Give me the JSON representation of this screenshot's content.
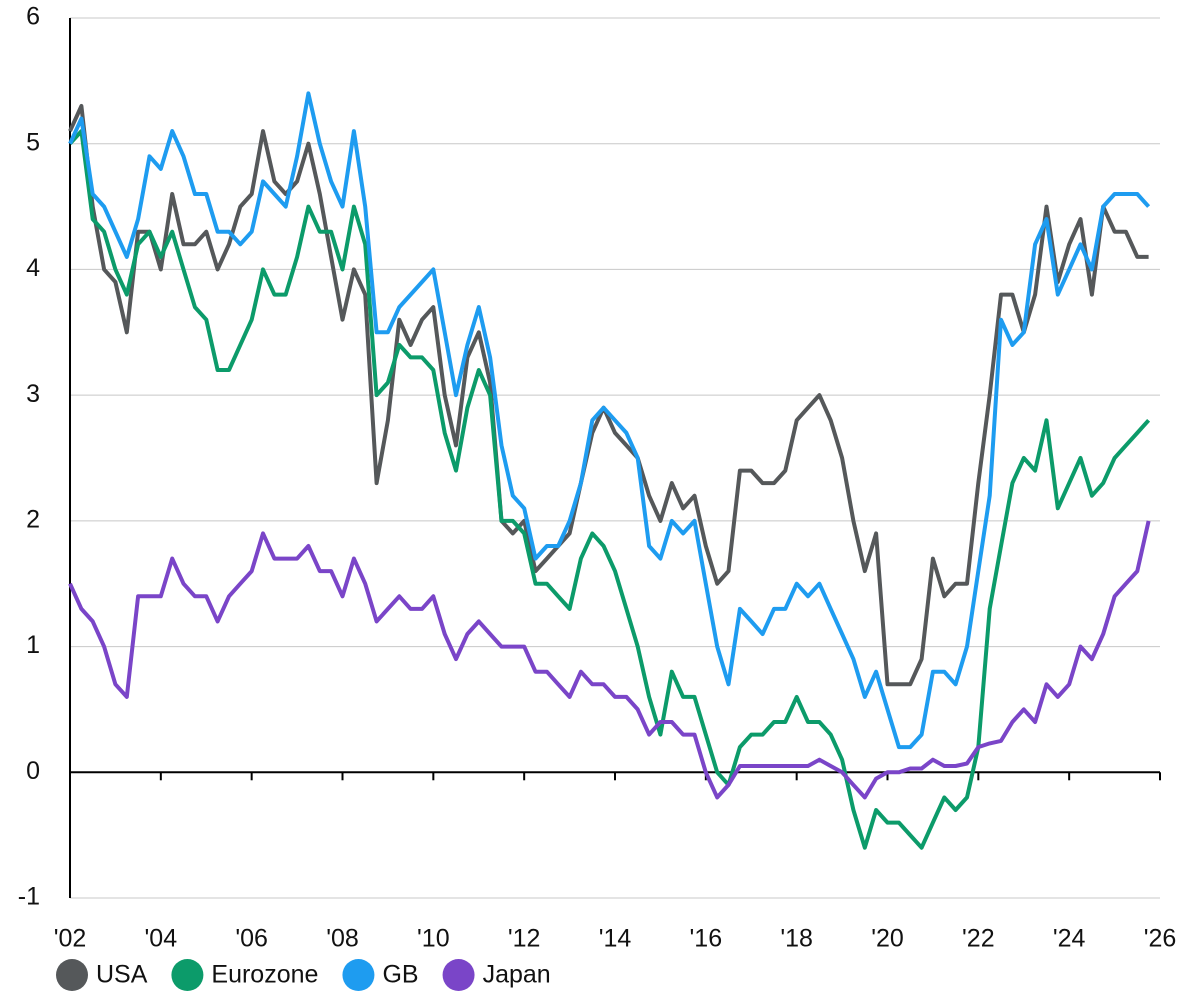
{
  "chart_data": {
    "type": "line",
    "x": [
      2002,
      2002.25,
      2002.5,
      2002.75,
      2003,
      2003.25,
      2003.5,
      2003.75,
      2004,
      2004.25,
      2004.5,
      2004.75,
      2005,
      2005.25,
      2005.5,
      2005.75,
      2006,
      2006.25,
      2006.5,
      2006.75,
      2007,
      2007.25,
      2007.5,
      2007.75,
      2008,
      2008.25,
      2008.5,
      2008.75,
      2009,
      2009.25,
      2009.5,
      2009.75,
      2010,
      2010.25,
      2010.5,
      2010.75,
      2011,
      2011.25,
      2011.5,
      2011.75,
      2012,
      2012.25,
      2012.5,
      2012.75,
      2013,
      2013.25,
      2013.5,
      2013.75,
      2014,
      2014.25,
      2014.5,
      2014.75,
      2015,
      2015.25,
      2015.5,
      2015.75,
      2016,
      2016.25,
      2016.5,
      2016.75,
      2017,
      2017.25,
      2017.5,
      2017.75,
      2018,
      2018.25,
      2018.5,
      2018.75,
      2019,
      2019.25,
      2019.5,
      2019.75,
      2020,
      2020.25,
      2020.5,
      2020.75,
      2021,
      2021.25,
      2021.5,
      2021.75,
      2022,
      2022.25,
      2022.5,
      2022.75,
      2023,
      2023.25,
      2023.5,
      2023.75,
      2024,
      2024.25,
      2024.5,
      2024.75,
      2025,
      2025.25,
      2025.5,
      2025.75
    ],
    "series": [
      {
        "name": "USA",
        "color": "#55585a",
        "values": [
          5.1,
          5.3,
          4.5,
          4.0,
          3.9,
          3.5,
          4.3,
          4.3,
          4.0,
          4.6,
          4.2,
          4.2,
          4.3,
          4.0,
          4.2,
          4.5,
          4.6,
          5.1,
          4.7,
          4.6,
          4.7,
          5.0,
          4.6,
          4.1,
          3.6,
          4.0,
          3.8,
          2.3,
          2.8,
          3.6,
          3.4,
          3.6,
          3.7,
          3.0,
          2.6,
          3.3,
          3.5,
          3.1,
          2.0,
          1.9,
          2.0,
          1.6,
          1.7,
          1.8,
          1.9,
          2.3,
          2.7,
          2.9,
          2.7,
          2.6,
          2.5,
          2.2,
          2.0,
          2.3,
          2.1,
          2.2,
          1.8,
          1.5,
          1.6,
          2.4,
          2.4,
          2.3,
          2.3,
          2.4,
          2.8,
          2.9,
          3.0,
          2.8,
          2.5,
          2.0,
          1.6,
          1.9,
          0.7,
          0.7,
          0.7,
          0.9,
          1.7,
          1.4,
          1.5,
          1.5,
          2.3,
          3.0,
          3.8,
          3.8,
          3.5,
          3.8,
          4.5,
          3.9,
          4.2,
          4.4,
          3.8,
          4.5,
          4.3,
          4.3,
          4.1,
          4.1
        ]
      },
      {
        "name": "Eurozone",
        "color": "#0c9b6a",
        "values": [
          5.0,
          5.1,
          4.4,
          4.3,
          4.0,
          3.8,
          4.2,
          4.3,
          4.1,
          4.3,
          4.0,
          3.7,
          3.6,
          3.2,
          3.2,
          3.4,
          3.6,
          4.0,
          3.8,
          3.8,
          4.1,
          4.5,
          4.3,
          4.3,
          4.0,
          4.5,
          4.2,
          3.0,
          3.1,
          3.4,
          3.3,
          3.3,
          3.2,
          2.7,
          2.4,
          2.9,
          3.2,
          3.0,
          2.0,
          2.0,
          1.9,
          1.5,
          1.5,
          1.4,
          1.3,
          1.7,
          1.9,
          1.8,
          1.6,
          1.3,
          1.0,
          0.6,
          0.3,
          0.8,
          0.6,
          0.6,
          0.3,
          0.0,
          -0.1,
          0.2,
          0.3,
          0.3,
          0.4,
          0.4,
          0.6,
          0.4,
          0.4,
          0.3,
          0.1,
          -0.3,
          -0.6,
          -0.3,
          -0.4,
          -0.4,
          -0.5,
          -0.6,
          -0.4,
          -0.2,
          -0.3,
          -0.2,
          0.2,
          1.3,
          1.8,
          2.3,
          2.5,
          2.4,
          2.8,
          2.1,
          2.3,
          2.5,
          2.2,
          2.3,
          2.5,
          2.6,
          2.7,
          2.8
        ]
      },
      {
        "name": "GB",
        "color": "#1e9cf0",
        "values": [
          5.0,
          5.2,
          4.6,
          4.5,
          4.3,
          4.1,
          4.4,
          4.9,
          4.8,
          5.1,
          4.9,
          4.6,
          4.6,
          4.3,
          4.3,
          4.2,
          4.3,
          4.7,
          4.6,
          4.5,
          4.9,
          5.4,
          5.0,
          4.7,
          4.5,
          5.1,
          4.5,
          3.5,
          3.5,
          3.7,
          3.8,
          3.9,
          4.0,
          3.5,
          3.0,
          3.4,
          3.7,
          3.3,
          2.6,
          2.2,
          2.1,
          1.7,
          1.8,
          1.8,
          2.0,
          2.3,
          2.8,
          2.9,
          2.8,
          2.7,
          2.5,
          1.8,
          1.7,
          2.0,
          1.9,
          2.0,
          1.5,
          1.0,
          0.7,
          1.3,
          1.2,
          1.1,
          1.3,
          1.3,
          1.5,
          1.4,
          1.5,
          1.3,
          1.1,
          0.9,
          0.6,
          0.8,
          0.5,
          0.2,
          0.2,
          0.3,
          0.8,
          0.8,
          0.7,
          1.0,
          1.6,
          2.2,
          3.6,
          3.4,
          3.5,
          4.2,
          4.4,
          3.8,
          4.0,
          4.2,
          4.0,
          4.5,
          4.6,
          4.6,
          4.6,
          4.5
        ]
      },
      {
        "name": "Japan",
        "color": "#7a45c8",
        "values": [
          1.5,
          1.3,
          1.2,
          1.0,
          0.7,
          0.6,
          1.4,
          1.4,
          1.4,
          1.7,
          1.5,
          1.4,
          1.4,
          1.2,
          1.4,
          1.5,
          1.6,
          1.9,
          1.7,
          1.7,
          1.7,
          1.8,
          1.6,
          1.6,
          1.4,
          1.7,
          1.5,
          1.2,
          1.3,
          1.4,
          1.3,
          1.3,
          1.4,
          1.1,
          0.9,
          1.1,
          1.2,
          1.1,
          1.0,
          1.0,
          1.0,
          0.8,
          0.8,
          0.7,
          0.6,
          0.8,
          0.7,
          0.7,
          0.6,
          0.6,
          0.5,
          0.3,
          0.4,
          0.4,
          0.3,
          0.3,
          0.0,
          -0.2,
          -0.1,
          0.05,
          0.05,
          0.05,
          0.05,
          0.05,
          0.05,
          0.05,
          0.1,
          0.05,
          0.0,
          -0.1,
          -0.2,
          -0.05,
          0.0,
          0.0,
          0.03,
          0.03,
          0.1,
          0.05,
          0.05,
          0.07,
          0.2,
          0.23,
          0.25,
          0.4,
          0.5,
          0.4,
          0.7,
          0.6,
          0.7,
          1.0,
          0.9,
          1.1,
          1.4,
          1.5,
          1.6,
          2.0
        ]
      }
    ],
    "xlim": [
      2002,
      2026
    ],
    "xticks": [
      {
        "value": 2002,
        "label": "'02"
      },
      {
        "value": 2004,
        "label": "'04"
      },
      {
        "value": 2006,
        "label": "'06"
      },
      {
        "value": 2008,
        "label": "'08"
      },
      {
        "value": 2010,
        "label": "'10"
      },
      {
        "value": 2012,
        "label": "'12"
      },
      {
        "value": 2014,
        "label": "'14"
      },
      {
        "value": 2016,
        "label": "'16"
      },
      {
        "value": 2018,
        "label": "'18"
      },
      {
        "value": 2020,
        "label": "'20"
      },
      {
        "value": 2022,
        "label": "'22"
      },
      {
        "value": 2024,
        "label": "'24"
      },
      {
        "value": 2026,
        "label": "'26"
      }
    ],
    "ylim": [
      -1,
      6
    ],
    "yticks": [
      -1,
      0,
      1,
      2,
      3,
      4,
      5,
      6
    ],
    "grid": true,
    "legend": "bottom"
  }
}
